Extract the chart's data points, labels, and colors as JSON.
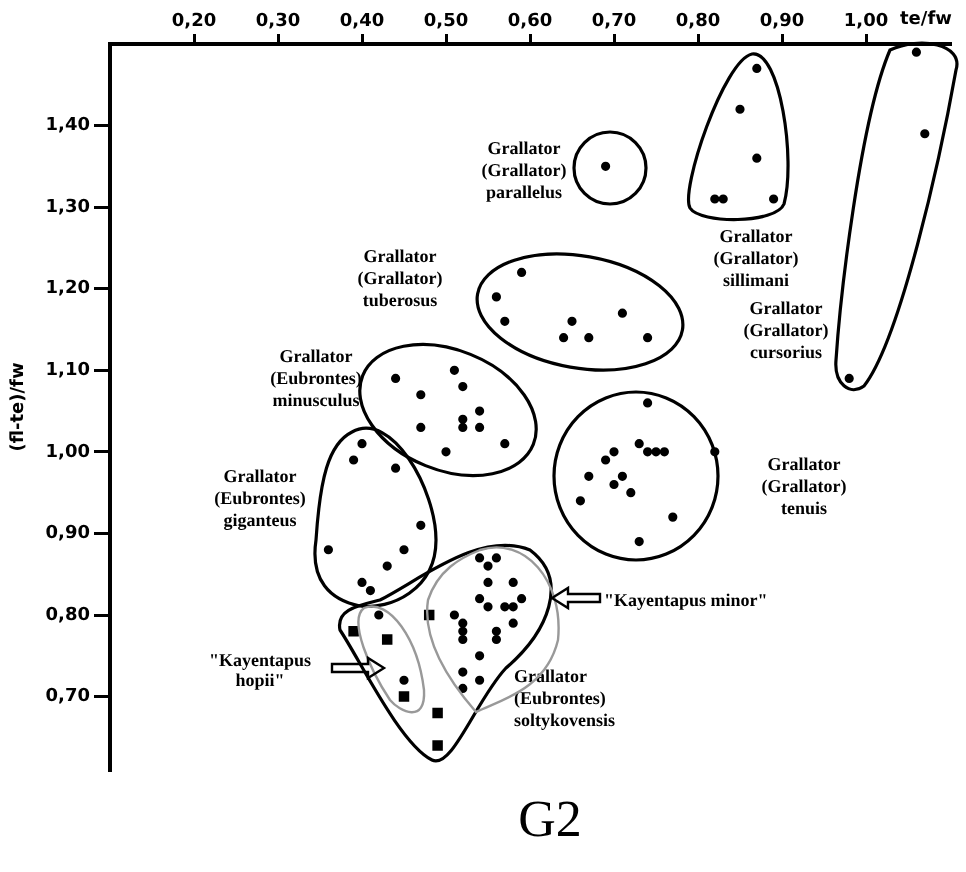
{
  "chart_data": {
    "type": "scatter",
    "title": "G2",
    "xlabel": "te/fw",
    "ylabel": "(fl-te)/fw",
    "xlim": [
      0.1,
      1.1
    ],
    "xticks": [
      {
        "value": 0.2,
        "label": "0,20"
      },
      {
        "value": 0.3,
        "label": "0,30"
      },
      {
        "value": 0.4,
        "label": "0,40"
      },
      {
        "value": 0.5,
        "label": "0,50"
      },
      {
        "value": 0.6,
        "label": "0,60"
      },
      {
        "value": 0.7,
        "label": "0,70"
      },
      {
        "value": 0.8,
        "label": "0,80"
      },
      {
        "value": 0.9,
        "label": "0,90"
      },
      {
        "value": 1.0,
        "label": "1,00"
      }
    ],
    "ylim": [
      0.61,
      1.5
    ],
    "yticks": [
      {
        "value": 0.7,
        "label": "0,70"
      },
      {
        "value": 0.8,
        "label": "0,80"
      },
      {
        "value": 0.9,
        "label": "0,90"
      },
      {
        "value": 1.0,
        "label": "1,00"
      },
      {
        "value": 1.1,
        "label": "1,10"
      },
      {
        "value": 1.2,
        "label": "1,20"
      },
      {
        "value": 1.3,
        "label": "1,30"
      },
      {
        "value": 1.4,
        "label": "1,40"
      }
    ],
    "grid": false,
    "legend": false,
    "marker": "circle",
    "annotations": [
      "\"Kayentapus minor\"",
      "\"Kayentapus hopii\""
    ],
    "series": [
      {
        "name": "Grallator (Grallator) parallelus",
        "color": "#000000",
        "x": [
          0.69
        ],
        "values": [
          1.35
        ]
      },
      {
        "name": "Grallator (Grallator) sillimani",
        "color": "#000000",
        "x": [
          0.87,
          0.85,
          0.87,
          0.82,
          0.83,
          0.89
        ],
        "values": [
          1.47,
          1.42,
          1.36,
          1.31,
          1.31,
          1.31
        ]
      },
      {
        "name": "Grallator (Grallator) cursorius",
        "color": "#000000",
        "x": [
          1.06,
          1.07,
          0.98
        ],
        "values": [
          1.49,
          1.39,
          1.09
        ]
      },
      {
        "name": "Grallator (Grallator) tuberosus",
        "color": "#000000",
        "x": [
          0.59,
          0.56,
          0.57,
          0.65,
          0.64,
          0.67,
          0.71,
          0.74
        ],
        "values": [
          1.22,
          1.19,
          1.16,
          1.16,
          1.14,
          1.14,
          1.17,
          1.14
        ]
      },
      {
        "name": "Grallator (Eubrontes) minusculus",
        "color": "#000000",
        "x": [
          0.44,
          0.51,
          0.52,
          0.47,
          0.54,
          0.52,
          0.52,
          0.54,
          0.47,
          0.57,
          0.5
        ],
        "values": [
          1.09,
          1.1,
          1.08,
          1.07,
          1.05,
          1.04,
          1.03,
          1.03,
          1.03,
          1.01,
          1.0
        ]
      },
      {
        "name": "Grallator (Eubrontes) giganteus",
        "color": "#000000",
        "x": [
          0.4,
          0.39,
          0.44,
          0.47,
          0.36,
          0.45,
          0.43,
          0.4,
          0.41
        ],
        "values": [
          1.01,
          0.99,
          0.98,
          0.91,
          0.88,
          0.88,
          0.86,
          0.84,
          0.83
        ]
      },
      {
        "name": "Grallator (Grallator) tenuis",
        "color": "#000000",
        "x": [
          0.74,
          0.73,
          0.74,
          0.75,
          0.76,
          0.7,
          0.69,
          0.82,
          0.67,
          0.71,
          0.7,
          0.72,
          0.66,
          0.77,
          0.73
        ],
        "values": [
          1.06,
          1.01,
          1.0,
          1.0,
          1.0,
          1.0,
          0.99,
          1.0,
          0.97,
          0.97,
          0.96,
          0.95,
          0.94,
          0.92,
          0.89
        ]
      },
      {
        "name": "Grallator (Eubrontes) soltykovensis",
        "color": "#000000",
        "x": [
          0.54,
          0.56,
          0.55,
          0.55,
          0.58,
          0.54,
          0.55,
          0.57,
          0.59,
          0.58,
          0.58,
          0.51,
          0.52,
          0.52,
          0.52,
          0.56,
          0.56,
          0.54,
          0.52,
          0.52,
          0.54,
          0.45,
          0.42
        ],
        "values": [
          0.87,
          0.87,
          0.86,
          0.84,
          0.84,
          0.82,
          0.81,
          0.81,
          0.82,
          0.81,
          0.79,
          0.8,
          0.79,
          0.78,
          0.77,
          0.78,
          0.77,
          0.75,
          0.73,
          0.71,
          0.72,
          0.72,
          0.8
        ]
      },
      {
        "color": "#000000",
        "marker": "square",
        "x": [
          0.39,
          0.43,
          0.45,
          0.48,
          0.49,
          0.49
        ],
        "values": [
          0.78,
          0.77,
          0.7,
          0.8,
          0.68,
          0.64
        ]
      }
    ]
  }
}
